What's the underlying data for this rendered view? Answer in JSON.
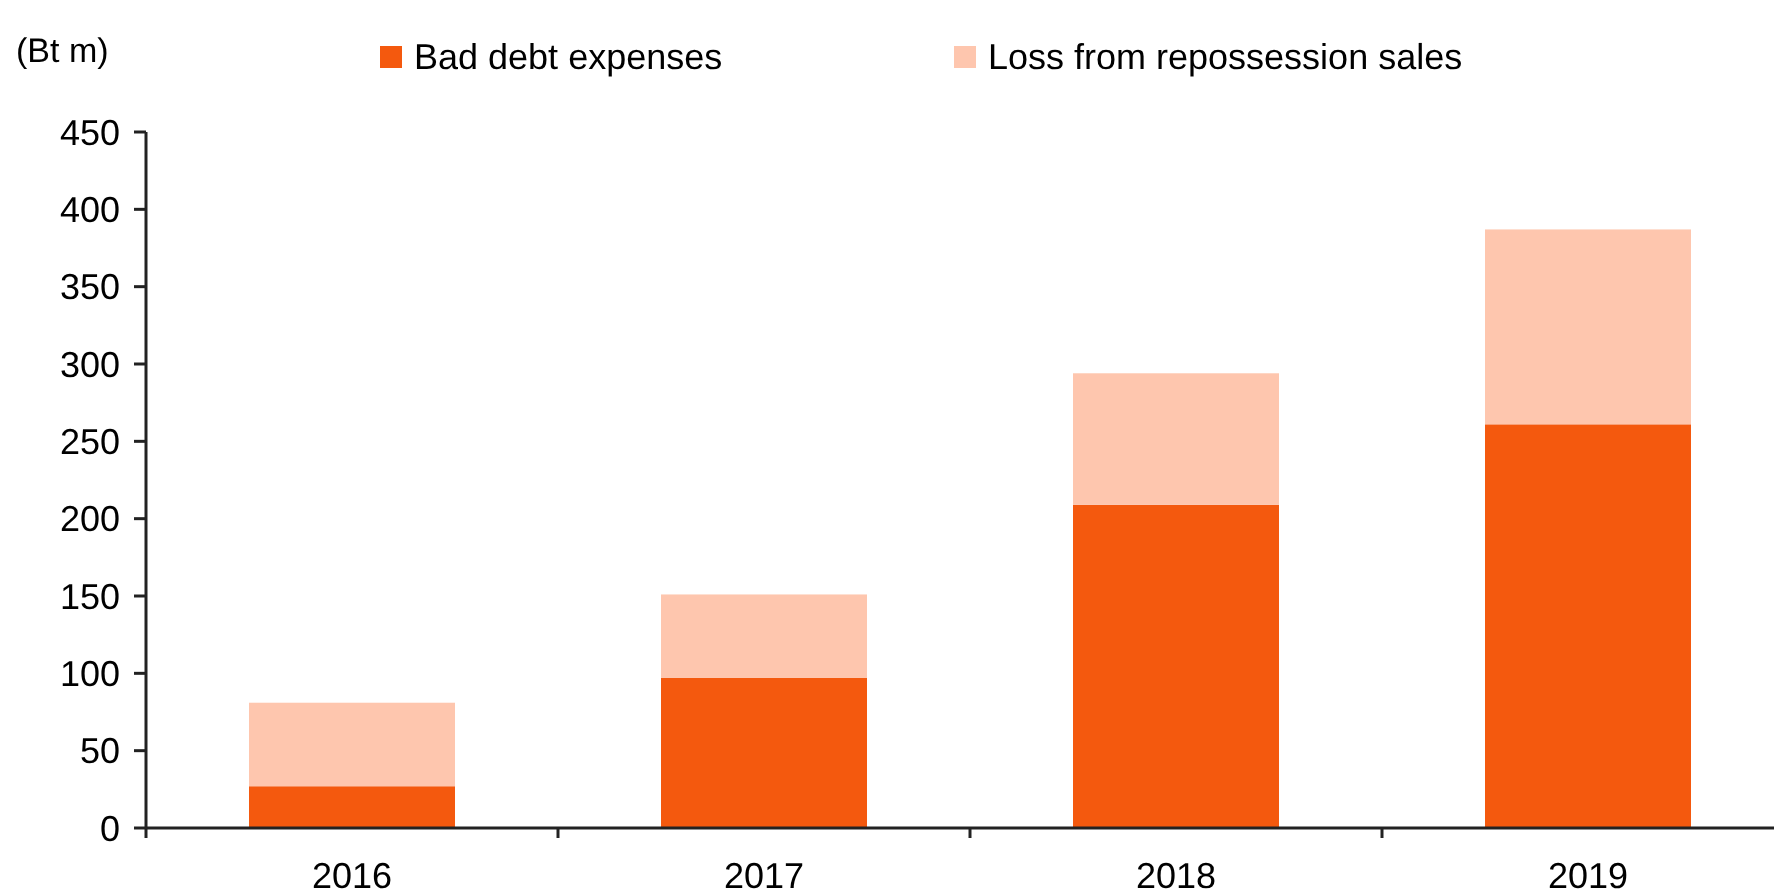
{
  "chart_data": {
    "type": "bar",
    "stacked": true,
    "ylabel": "(Bt m)",
    "categories": [
      "2016",
      "2017",
      "2018",
      "2019"
    ],
    "series": [
      {
        "name": "Bad debt expenses",
        "color": "#f4590e",
        "values": [
          27,
          97,
          209,
          261
        ]
      },
      {
        "name": "Loss from repossession sales",
        "color": "#fec6ae",
        "values": [
          54,
          54,
          85,
          126
        ]
      }
    ],
    "ylim": [
      0,
      450
    ],
    "yticks": [
      0,
      50,
      100,
      150,
      200,
      250,
      300,
      350,
      400,
      450
    ],
    "grid": false,
    "legend": "top"
  }
}
